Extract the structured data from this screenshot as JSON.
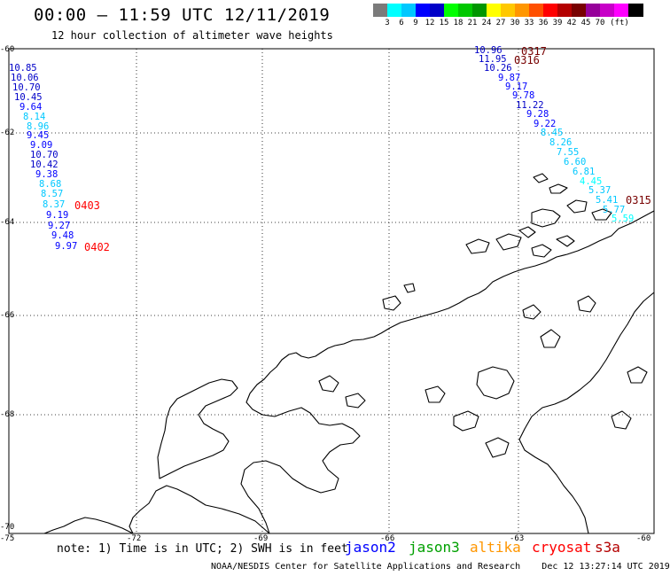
{
  "header": {
    "title": "00:00 – 11:59 UTC 12/11/2019",
    "subtitle": "12 hour collection of altimeter wave heights"
  },
  "legend": {
    "colors": [
      "#7b7b7b",
      "#00ffff",
      "#00c8ff",
      "#0000ff",
      "#0000c8",
      "#00ff00",
      "#00c800",
      "#009600",
      "#ffff00",
      "#ffc800",
      "#ff9600",
      "#ff5000",
      "#ff0000",
      "#b40000",
      "#780000",
      "#96009a",
      "#c800c8",
      "#ff00ff",
      "#000000"
    ],
    "ticks": [
      "3",
      "6",
      "9",
      "12",
      "15",
      "18",
      "21",
      "24",
      "27",
      "30",
      "33",
      "36",
      "39",
      "42",
      "45",
      "70",
      "(ft)"
    ]
  },
  "axes": {
    "lat_labels": [
      "-60",
      "-62",
      "-64",
      "-66",
      "-68",
      "-70"
    ],
    "lon_labels": [
      "-75",
      "-72",
      "-69",
      "-66",
      "-63",
      "-60"
    ]
  },
  "tracks": {
    "west": {
      "values": [
        "10.85",
        "10.06",
        "10.70",
        "10.45",
        "9.64",
        "8.14",
        "8.96",
        "9.45",
        "9.09",
        "10.70",
        "10.42",
        "9.38",
        "8.68",
        "8.57",
        "8.37",
        "9.19",
        "9.27",
        "9.48",
        "9.97"
      ],
      "colors": [
        "#0000c8",
        "#0000c8",
        "#0000c8",
        "#0000c8",
        "#0000ff",
        "#00c8ff",
        "#00c8ff",
        "#0000ff",
        "#0000ff",
        "#0000c8",
        "#0000c8",
        "#0000ff",
        "#00c8ff",
        "#00c8ff",
        "#00c8ff",
        "#0000ff",
        "#0000ff",
        "#0000ff",
        "#0000ff"
      ],
      "passes": [
        "0403",
        "0402"
      ]
    },
    "east": {
      "values": [
        "10.96",
        "11.95",
        "10.26",
        "9.87",
        "9.17",
        "9.78",
        "11.22",
        "9.28",
        "9.22",
        "8.45",
        "8.26",
        "7.55",
        "6.60",
        "6.81",
        "4.45",
        "5.37",
        "5.41",
        "5.77",
        "5.59"
      ],
      "colors": [
        "#0000c8",
        "#0000c8",
        "#0000c8",
        "#0000ff",
        "#0000ff",
        "#0000ff",
        "#0000c8",
        "#0000ff",
        "#0000ff",
        "#00c8ff",
        "#00c8ff",
        "#00c8ff",
        "#00c8ff",
        "#00c8ff",
        "#00ffff",
        "#00c8ff",
        "#00c8ff",
        "#00c8ff",
        "#00ffff"
      ],
      "passes": [
        "0317",
        "0316",
        "0315"
      ]
    }
  },
  "note": "note: 1) Time is in UTC; 2) SWH is in feet",
  "satellites": [
    {
      "name": "jason2",
      "color": "#0000ff"
    },
    {
      "name": "jason3",
      "color": "#00a000"
    },
    {
      "name": "altika",
      "color": "#ff9600"
    },
    {
      "name": "cryosat",
      "color": "#ff0000"
    },
    {
      "name": "s3a",
      "color": "#b40000"
    }
  ],
  "footer": {
    "agency": "NOAA/NESDIS Center for Satellite Applications and Research",
    "timestamp": "Dec 12 13:27:14 UTC 2019"
  }
}
